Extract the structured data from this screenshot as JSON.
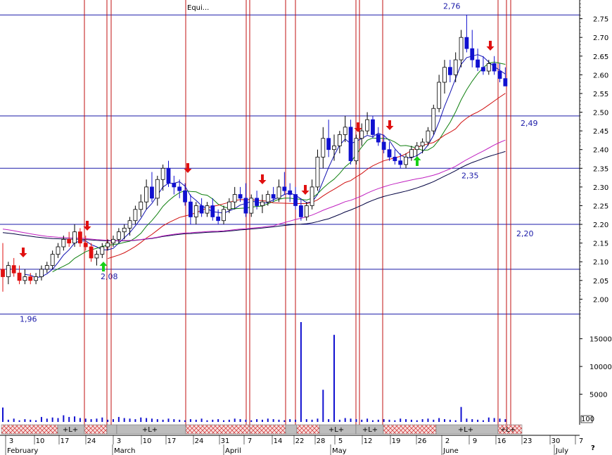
{
  "chart_data": {
    "type": "candlestick",
    "title": "Equi...",
    "price_axis": {
      "min": 1.95,
      "max": 2.8,
      "ticks": [
        2.0,
        2.05,
        2.1,
        2.15,
        2.2,
        2.25,
        2.3,
        2.35,
        2.4,
        2.45,
        2.5,
        2.55,
        2.6,
        2.65,
        2.7,
        2.75
      ],
      "labels": [
        "2.00",
        "2.05",
        "2.10",
        "2.15",
        "2.20",
        "2.25",
        "2.30",
        "2.35",
        "2.40",
        "2.45",
        "2.50",
        "2.55",
        "2.60",
        "2.65",
        "2.70",
        "2.75"
      ]
    },
    "volume_axis": {
      "min": 0,
      "max": 18000,
      "ticks": [
        5000,
        10000,
        15000
      ],
      "labels": [
        "5000",
        "10000",
        "15000"
      ],
      "extra_label": "100"
    },
    "horizontal_levels": [
      {
        "value": 2.76,
        "label": "2,76"
      },
      {
        "value": 2.49,
        "label": "2,49"
      },
      {
        "value": 2.35,
        "label": "2,35"
      },
      {
        "value": 2.2,
        "label": "2,20"
      },
      {
        "value": 2.08,
        "label": "2,08"
      },
      {
        "value": 1.96,
        "label": "1,96"
      }
    ],
    "x_axis": {
      "day_labels": [
        "3",
        "10",
        "17",
        "24",
        "3",
        "10",
        "17",
        "24",
        "31",
        "7",
        "14",
        "22",
        "28",
        "5",
        "12",
        "19",
        "26",
        "2",
        "9",
        "16",
        "23",
        "30",
        "7"
      ],
      "month_labels": [
        "February",
        "March",
        "April",
        "May",
        "June",
        "July"
      ],
      "help_mark": "?"
    },
    "signal_bar": [
      "+L+",
      "+L+",
      "+L+",
      "+L+",
      "+L+",
      "+L+"
    ],
    "candles": [
      [
        2.08,
        2.15,
        2.02,
        2.06
      ],
      [
        2.06,
        2.1,
        2.04,
        2.09
      ],
      [
        2.09,
        2.11,
        2.06,
        2.07
      ],
      [
        2.07,
        2.09,
        2.04,
        2.05
      ],
      [
        2.05,
        2.08,
        2.04,
        2.06
      ],
      [
        2.06,
        2.07,
        2.04,
        2.05
      ],
      [
        2.05,
        2.07,
        2.04,
        2.06
      ],
      [
        2.06,
        2.09,
        2.05,
        2.08
      ],
      [
        2.08,
        2.1,
        2.07,
        2.09
      ],
      [
        2.09,
        2.13,
        2.08,
        2.12
      ],
      [
        2.12,
        2.15,
        2.11,
        2.14
      ],
      [
        2.14,
        2.17,
        2.13,
        2.16
      ],
      [
        2.16,
        2.18,
        2.14,
        2.15
      ],
      [
        2.15,
        2.2,
        2.14,
        2.18
      ],
      [
        2.18,
        2.19,
        2.14,
        2.15
      ],
      [
        2.15,
        2.17,
        2.13,
        2.14
      ],
      [
        2.14,
        2.15,
        2.1,
        2.11
      ],
      [
        2.11,
        2.13,
        2.09,
        2.12
      ],
      [
        2.12,
        2.15,
        2.11,
        2.14
      ],
      [
        2.14,
        2.16,
        2.13,
        2.15
      ],
      [
        2.15,
        2.17,
        2.14,
        2.16
      ],
      [
        2.16,
        2.19,
        2.15,
        2.18
      ],
      [
        2.18,
        2.2,
        2.16,
        2.19
      ],
      [
        2.19,
        2.22,
        2.17,
        2.21
      ],
      [
        2.21,
        2.25,
        2.2,
        2.24
      ],
      [
        2.24,
        2.28,
        2.22,
        2.26
      ],
      [
        2.26,
        2.32,
        2.24,
        2.3
      ],
      [
        2.3,
        2.34,
        2.26,
        2.27
      ],
      [
        2.27,
        2.33,
        2.25,
        2.32
      ],
      [
        2.32,
        2.36,
        2.29,
        2.35
      ],
      [
        2.35,
        2.37,
        2.3,
        2.31
      ],
      [
        2.31,
        2.33,
        2.28,
        2.3
      ],
      [
        2.3,
        2.32,
        2.27,
        2.29
      ],
      [
        2.29,
        2.31,
        2.25,
        2.26
      ],
      [
        2.26,
        2.28,
        2.2,
        2.22
      ],
      [
        2.22,
        2.26,
        2.2,
        2.25
      ],
      [
        2.25,
        2.27,
        2.22,
        2.23
      ],
      [
        2.23,
        2.26,
        2.22,
        2.25
      ],
      [
        2.25,
        2.27,
        2.21,
        2.22
      ],
      [
        2.22,
        2.24,
        2.2,
        2.21
      ],
      [
        2.21,
        2.25,
        2.2,
        2.24
      ],
      [
        2.24,
        2.27,
        2.23,
        2.26
      ],
      [
        2.26,
        2.3,
        2.24,
        2.28
      ],
      [
        2.28,
        2.3,
        2.26,
        2.27
      ],
      [
        2.27,
        2.31,
        2.22,
        2.23
      ],
      [
        2.23,
        2.28,
        2.22,
        2.27
      ],
      [
        2.27,
        2.29,
        2.24,
        2.25
      ],
      [
        2.25,
        2.28,
        2.23,
        2.26
      ],
      [
        2.26,
        2.29,
        2.25,
        2.28
      ],
      [
        2.28,
        2.3,
        2.26,
        2.27
      ],
      [
        2.27,
        2.32,
        2.26,
        2.3
      ],
      [
        2.3,
        2.34,
        2.28,
        2.29
      ],
      [
        2.29,
        2.31,
        2.26,
        2.28
      ],
      [
        2.28,
        2.3,
        2.24,
        2.25
      ],
      [
        2.25,
        2.27,
        2.21,
        2.22
      ],
      [
        2.22,
        2.26,
        2.21,
        2.25
      ],
      [
        2.25,
        2.32,
        2.24,
        2.3
      ],
      [
        2.3,
        2.4,
        2.29,
        2.38
      ],
      [
        2.38,
        2.46,
        2.35,
        2.43
      ],
      [
        2.43,
        2.48,
        2.38,
        2.4
      ],
      [
        2.4,
        2.44,
        2.37,
        2.41
      ],
      [
        2.41,
        2.45,
        2.39,
        2.44
      ],
      [
        2.44,
        2.49,
        2.42,
        2.46
      ],
      [
        2.46,
        2.48,
        2.36,
        2.37
      ],
      [
        2.37,
        2.44,
        2.36,
        2.43
      ],
      [
        2.43,
        2.47,
        2.41,
        2.45
      ],
      [
        2.45,
        2.5,
        2.44,
        2.48
      ],
      [
        2.48,
        2.49,
        2.43,
        2.44
      ],
      [
        2.44,
        2.46,
        2.41,
        2.42
      ],
      [
        2.42,
        2.44,
        2.39,
        2.4
      ],
      [
        2.4,
        2.42,
        2.37,
        2.38
      ],
      [
        2.38,
        2.4,
        2.36,
        2.37
      ],
      [
        2.37,
        2.39,
        2.35,
        2.36
      ],
      [
        2.36,
        2.39,
        2.35,
        2.38
      ],
      [
        2.38,
        2.41,
        2.37,
        2.4
      ],
      [
        2.4,
        2.42,
        2.38,
        2.41
      ],
      [
        2.41,
        2.43,
        2.39,
        2.42
      ],
      [
        2.42,
        2.46,
        2.41,
        2.45
      ],
      [
        2.45,
        2.52,
        2.44,
        2.51
      ],
      [
        2.51,
        2.6,
        2.5,
        2.58
      ],
      [
        2.58,
        2.64,
        2.55,
        2.62
      ],
      [
        2.62,
        2.64,
        2.58,
        2.6
      ],
      [
        2.6,
        2.66,
        2.58,
        2.64
      ],
      [
        2.64,
        2.72,
        2.62,
        2.7
      ],
      [
        2.7,
        2.76,
        2.66,
        2.67
      ],
      [
        2.67,
        2.72,
        2.62,
        2.64
      ],
      [
        2.64,
        2.67,
        2.61,
        2.62
      ],
      [
        2.62,
        2.65,
        2.6,
        2.61
      ],
      [
        2.61,
        2.64,
        2.6,
        2.63
      ],
      [
        2.63,
        2.65,
        2.6,
        2.61
      ],
      [
        2.61,
        2.63,
        2.58,
        2.59
      ],
      [
        2.59,
        2.62,
        2.57,
        2.57
      ]
    ],
    "volumes": [
      2600,
      400,
      600,
      300,
      500,
      400,
      300,
      900,
      600,
      800,
      700,
      1200,
      900,
      1000,
      700,
      600,
      500,
      600,
      800,
      400,
      500,
      900,
      700,
      600,
      500,
      800,
      700,
      600,
      500,
      400,
      600,
      500,
      400,
      300,
      500,
      400,
      600,
      300,
      400,
      500,
      300,
      400,
      600,
      500,
      400,
      300,
      500,
      400,
      600,
      500,
      400,
      300,
      500,
      400,
      18000,
      500,
      400,
      600,
      5800,
      500,
      15700,
      400,
      700,
      600,
      500,
      400,
      600,
      300,
      400,
      500,
      400,
      300,
      600,
      500,
      400,
      300,
      500,
      600,
      400,
      700,
      500,
      400,
      300,
      2700,
      600,
      500,
      400,
      300,
      800,
      700,
      600,
      500
    ],
    "series": [
      {
        "name": "",
        "color": "#1010b0",
        "values": []
      },
      {
        "name": "",
        "color": "#108010",
        "values": []
      },
      {
        "name": "",
        "color": "#d01010",
        "values": []
      },
      {
        "name": "",
        "color": "#000040",
        "values": []
      },
      {
        "name": "",
        "color": "#c020c0",
        "values": []
      }
    ],
    "colors": {
      "up": "#ffffff",
      "down": "#1010d0",
      "early_down": "#e01010",
      "level_line": "#1a1aa8",
      "event_line": "#c01010",
      "grid": "#000000"
    }
  }
}
